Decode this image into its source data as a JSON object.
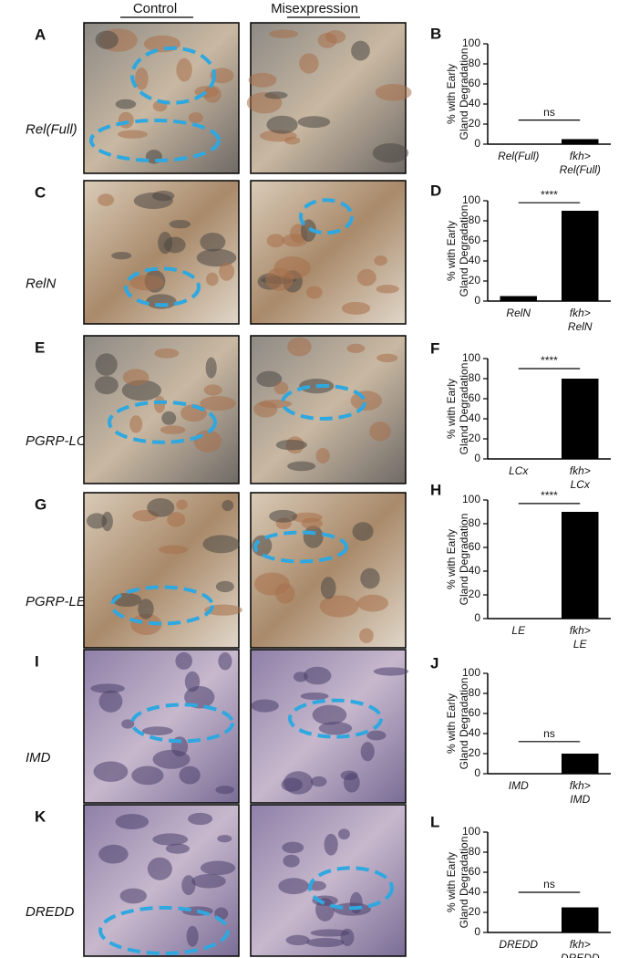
{
  "column_headers": [
    "Control",
    "Misexpression"
  ],
  "rows": [
    {
      "letter": "A",
      "label": "Rel(Full)"
    },
    {
      "letter": "C",
      "label": "RelN"
    },
    {
      "letter": "E",
      "label": "PGRP-LCx"
    },
    {
      "letter": "G",
      "label": "PGRP-LE"
    },
    {
      "letter": "I",
      "label": "IMD"
    },
    {
      "letter": "K",
      "label": "DREDD"
    }
  ],
  "chart_data": [
    {
      "type": "bar",
      "panel": "B",
      "y_label": [
        "% with Early",
        "Gland Degradation"
      ],
      "categories": [
        [
          "Rel(Full)"
        ],
        [
          "fkh>",
          "Rel(Full)"
        ]
      ],
      "values": [
        0,
        5
      ],
      "color": "#000000",
      "ylim": [
        0,
        100
      ],
      "yticks": [
        0,
        20,
        40,
        60,
        80,
        100
      ],
      "annotation": "ns"
    },
    {
      "type": "bar",
      "panel": "D",
      "y_label": [
        "% with Early",
        "Gland Degradation"
      ],
      "categories": [
        [
          "RelN"
        ],
        [
          "fkh>",
          "RelN"
        ]
      ],
      "values": [
        5,
        90
      ],
      "color": "#000000",
      "ylim": [
        0,
        100
      ],
      "yticks": [
        0,
        20,
        40,
        60,
        80,
        100
      ],
      "annotation": "****"
    },
    {
      "type": "bar",
      "panel": "F",
      "y_label": [
        "% with Early",
        "Gland Degradation"
      ],
      "categories": [
        [
          "LCx"
        ],
        [
          "fkh>",
          "LCx"
        ]
      ],
      "values": [
        0,
        80
      ],
      "color": "#000000",
      "ylim": [
        0,
        100
      ],
      "yticks": [
        0,
        20,
        40,
        60,
        80,
        100
      ],
      "annotation": "****"
    },
    {
      "type": "bar",
      "panel": "H",
      "y_label": [
        "% with Early",
        "Gland Degradation"
      ],
      "categories": [
        [
          "LE"
        ],
        [
          "fkh>",
          "LE"
        ]
      ],
      "values": [
        0,
        90
      ],
      "color": "#000000",
      "ylim": [
        0,
        100
      ],
      "yticks": [
        0,
        20,
        40,
        60,
        80,
        100
      ],
      "annotation": "****"
    },
    {
      "type": "bar",
      "panel": "J",
      "y_label": [
        "% with Early",
        "Gland Degradation"
      ],
      "categories": [
        [
          "IMD"
        ],
        [
          "fkh>",
          "IMD"
        ]
      ],
      "values": [
        0,
        20
      ],
      "color": "#000000",
      "ylim": [
        0,
        100
      ],
      "yticks": [
        0,
        20,
        40,
        60,
        80,
        100
      ],
      "annotation": "ns"
    },
    {
      "type": "bar",
      "panel": "L",
      "y_label": [
        "% with Early",
        "Gland Degradation"
      ],
      "categories": [
        [
          "DREDD"
        ],
        [
          "fkh>",
          "DREDD"
        ]
      ],
      "values": [
        0,
        25
      ],
      "color": "#000000",
      "ylim": [
        0,
        100
      ],
      "yticks": [
        0,
        20,
        40,
        60,
        80,
        100
      ],
      "annotation": "ns"
    }
  ]
}
